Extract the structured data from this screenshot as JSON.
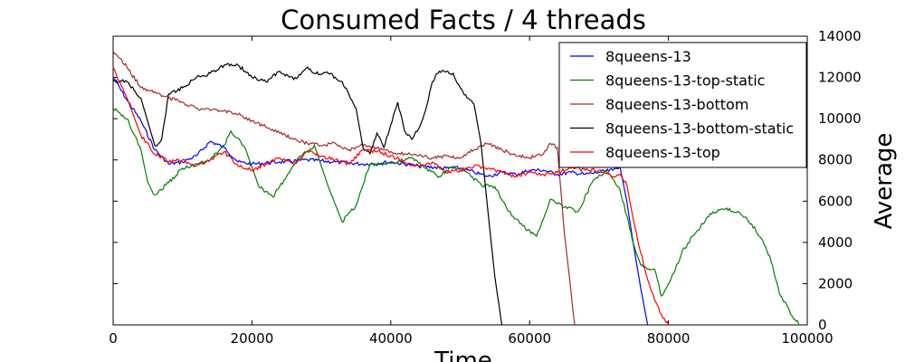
{
  "chart_data": {
    "type": "line",
    "title": "Consumed Facts / 4 threads",
    "xlabel": "Time",
    "ylabel": "Average",
    "xlim": [
      0,
      100000
    ],
    "ylim": [
      0,
      14000
    ],
    "x_ticks": [
      "0",
      "20000",
      "40000",
      "60000",
      "80000",
      "100000"
    ],
    "y_ticks": [
      "0",
      "2000",
      "4000",
      "6000",
      "8000",
      "10000",
      "12000",
      "14000"
    ],
    "y_axis_side": "right",
    "grid": false,
    "legend_position": "top-right",
    "series": [
      {
        "name": "8queens-13",
        "color": "#0000ff",
        "points": [
          [
            0,
            12000
          ],
          [
            2000,
            10900
          ],
          [
            4000,
            9900
          ],
          [
            6000,
            8500
          ],
          [
            8000,
            7800
          ],
          [
            10000,
            7900
          ],
          [
            12000,
            8200
          ],
          [
            14000,
            8900
          ],
          [
            16000,
            8600
          ],
          [
            18000,
            7900
          ],
          [
            20000,
            7800
          ],
          [
            24000,
            7900
          ],
          [
            28000,
            8000
          ],
          [
            32000,
            7900
          ],
          [
            36000,
            7800
          ],
          [
            40000,
            7900
          ],
          [
            44000,
            7700
          ],
          [
            48000,
            7600
          ],
          [
            50000,
            7600
          ],
          [
            52000,
            7400
          ],
          [
            54000,
            7200
          ],
          [
            56000,
            7400
          ],
          [
            58000,
            7300
          ],
          [
            60000,
            7500
          ],
          [
            62000,
            7500
          ],
          [
            64000,
            7300
          ],
          [
            66000,
            7400
          ],
          [
            68000,
            7300
          ],
          [
            70000,
            7400
          ],
          [
            72000,
            7500
          ],
          [
            73000,
            7700
          ],
          [
            74000,
            6000
          ],
          [
            75000,
            3800
          ],
          [
            76000,
            1800
          ],
          [
            77000,
            0
          ]
        ]
      },
      {
        "name": "8queens-13-top-static",
        "color": "#008000",
        "points": [
          [
            0,
            10500
          ],
          [
            2000,
            10000
          ],
          [
            4000,
            8500
          ],
          [
            5000,
            6900
          ],
          [
            6000,
            6300
          ],
          [
            8000,
            6900
          ],
          [
            10000,
            7600
          ],
          [
            12000,
            7800
          ],
          [
            14000,
            8000
          ],
          [
            16000,
            8700
          ],
          [
            17000,
            9400
          ],
          [
            19000,
            8600
          ],
          [
            21000,
            6700
          ],
          [
            23000,
            6200
          ],
          [
            25000,
            7200
          ],
          [
            27000,
            8200
          ],
          [
            29000,
            8700
          ],
          [
            31000,
            6700
          ],
          [
            33000,
            5000
          ],
          [
            35000,
            5800
          ],
          [
            37000,
            7800
          ],
          [
            39000,
            7800
          ],
          [
            41000,
            7900
          ],
          [
            43000,
            8100
          ],
          [
            45000,
            7600
          ],
          [
            47000,
            7200
          ],
          [
            49000,
            7700
          ],
          [
            51000,
            7400
          ],
          [
            53000,
            6800
          ],
          [
            55000,
            6700
          ],
          [
            57000,
            5500
          ],
          [
            59000,
            4800
          ],
          [
            61000,
            4300
          ],
          [
            63000,
            6100
          ],
          [
            65000,
            5700
          ],
          [
            67000,
            5500
          ],
          [
            69000,
            6900
          ],
          [
            71000,
            7500
          ],
          [
            73000,
            6600
          ],
          [
            74000,
            5300
          ],
          [
            75000,
            3900
          ],
          [
            76000,
            2900
          ],
          [
            77000,
            2700
          ],
          [
            78000,
            2700
          ],
          [
            79000,
            1400
          ],
          [
            80000,
            2000
          ],
          [
            81000,
            2700
          ],
          [
            82000,
            3600
          ],
          [
            84000,
            4500
          ],
          [
            86000,
            5400
          ],
          [
            88000,
            5600
          ],
          [
            90000,
            5500
          ],
          [
            92000,
            4900
          ],
          [
            94000,
            3800
          ],
          [
            95000,
            2900
          ],
          [
            96000,
            1500
          ],
          [
            97000,
            1000
          ],
          [
            98000,
            300
          ],
          [
            99000,
            0
          ]
        ]
      },
      {
        "name": "8queens-13-bottom",
        "color": "#a52a2a",
        "points": [
          [
            0,
            13300
          ],
          [
            2000,
            12500
          ],
          [
            4000,
            11500
          ],
          [
            6000,
            11300
          ],
          [
            8000,
            11000
          ],
          [
            10000,
            10800
          ],
          [
            12000,
            10500
          ],
          [
            14000,
            10400
          ],
          [
            16000,
            10400
          ],
          [
            18000,
            10200
          ],
          [
            20000,
            9900
          ],
          [
            22000,
            9600
          ],
          [
            24000,
            9300
          ],
          [
            26000,
            9000
          ],
          [
            28000,
            8800
          ],
          [
            30000,
            8700
          ],
          [
            32000,
            8800
          ],
          [
            34000,
            8500
          ],
          [
            36000,
            8700
          ],
          [
            38000,
            8600
          ],
          [
            40000,
            8400
          ],
          [
            42000,
            8300
          ],
          [
            44000,
            8200
          ],
          [
            46000,
            8100
          ],
          [
            48000,
            8200
          ],
          [
            50000,
            8100
          ],
          [
            52000,
            8500
          ],
          [
            54000,
            8800
          ],
          [
            56000,
            8500
          ],
          [
            58000,
            8200
          ],
          [
            60000,
            8100
          ],
          [
            62000,
            8300
          ],
          [
            63000,
            8800
          ],
          [
            64000,
            8600
          ],
          [
            65000,
            4500
          ],
          [
            66000,
            1500
          ],
          [
            66500,
            0
          ]
        ]
      },
      {
        "name": "8queens-13-bottom-static",
        "color": "#000000",
        "points": [
          [
            0,
            11800
          ],
          [
            2000,
            11800
          ],
          [
            4000,
            11000
          ],
          [
            6000,
            8700
          ],
          [
            7000,
            9000
          ],
          [
            8000,
            11200
          ],
          [
            10000,
            11500
          ],
          [
            12000,
            12000
          ],
          [
            14000,
            12200
          ],
          [
            16000,
            12600
          ],
          [
            18000,
            12600
          ],
          [
            20000,
            12000
          ],
          [
            22000,
            11800
          ],
          [
            24000,
            12300
          ],
          [
            26000,
            11900
          ],
          [
            28000,
            12500
          ],
          [
            29000,
            12200
          ],
          [
            31000,
            12200
          ],
          [
            33000,
            11800
          ],
          [
            35000,
            10500
          ],
          [
            36000,
            8600
          ],
          [
            37000,
            8300
          ],
          [
            38000,
            9300
          ],
          [
            39000,
            8600
          ],
          [
            40000,
            9700
          ],
          [
            41000,
            10800
          ],
          [
            42000,
            9400
          ],
          [
            43000,
            9000
          ],
          [
            44000,
            9500
          ],
          [
            45000,
            10400
          ],
          [
            46000,
            11800
          ],
          [
            47000,
            12300
          ],
          [
            49000,
            12200
          ],
          [
            50000,
            11500
          ],
          [
            51000,
            11000
          ],
          [
            52000,
            10700
          ],
          [
            53000,
            8800
          ],
          [
            54000,
            5500
          ],
          [
            55000,
            2300
          ],
          [
            56000,
            0
          ]
        ]
      },
      {
        "name": "8queens-13-top",
        "color": "#ff0000",
        "points": [
          [
            0,
            12500
          ],
          [
            2000,
            11000
          ],
          [
            4000,
            9200
          ],
          [
            6000,
            8300
          ],
          [
            8000,
            7900
          ],
          [
            10000,
            8000
          ],
          [
            12000,
            7700
          ],
          [
            14000,
            8000
          ],
          [
            16000,
            8400
          ],
          [
            18000,
            7700
          ],
          [
            20000,
            7500
          ],
          [
            22000,
            7800
          ],
          [
            24000,
            8100
          ],
          [
            26000,
            7800
          ],
          [
            28000,
            8400
          ],
          [
            30000,
            8200
          ],
          [
            32000,
            8000
          ],
          [
            34000,
            7800
          ],
          [
            36000,
            8500
          ],
          [
            38000,
            8400
          ],
          [
            40000,
            8200
          ],
          [
            42000,
            7900
          ],
          [
            44000,
            7700
          ],
          [
            46000,
            7900
          ],
          [
            48000,
            7400
          ],
          [
            50000,
            7500
          ],
          [
            52000,
            7700
          ],
          [
            54000,
            7600
          ],
          [
            56000,
            7400
          ],
          [
            58000,
            7200
          ],
          [
            60000,
            7400
          ],
          [
            62000,
            7300
          ],
          [
            64000,
            7400
          ],
          [
            66000,
            7600
          ],
          [
            68000,
            7500
          ],
          [
            70000,
            7500
          ],
          [
            72000,
            7200
          ],
          [
            73000,
            7300
          ],
          [
            74000,
            6800
          ],
          [
            75000,
            5000
          ],
          [
            76000,
            3500
          ],
          [
            77000,
            2200
          ],
          [
            78000,
            1200
          ],
          [
            79000,
            500
          ],
          [
            80000,
            0
          ]
        ]
      }
    ]
  }
}
